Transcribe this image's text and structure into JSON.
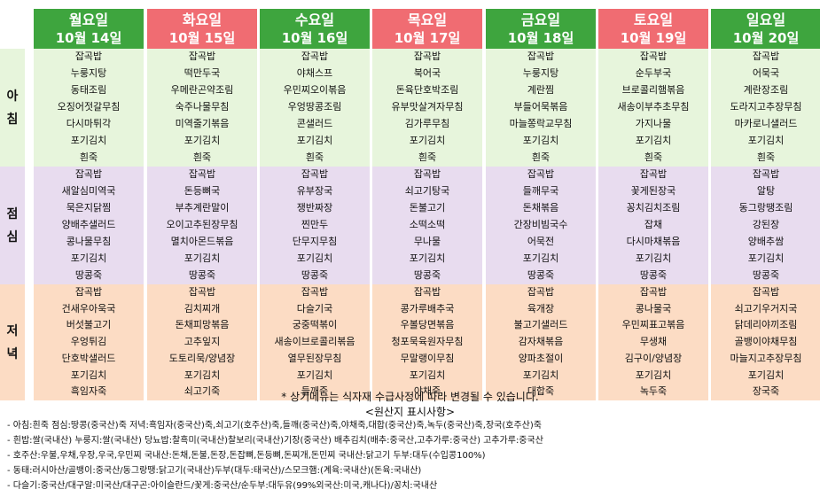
{
  "days": [
    {
      "day": "월요일",
      "date": "10월 14일",
      "header_color": "#3ea53e",
      "breakfast": [
        "잡곡밥",
        "누룽지탕",
        "동태조림",
        "오징어젓갈무침",
        "다시마튀각",
        "포기김치",
        "흰죽"
      ],
      "lunch": [
        "잡곡밥",
        "새알심미역국",
        "묵은지닭찜",
        "양배추샐러드",
        "콩나물무침",
        "포기김치",
        "땅콩죽"
      ],
      "dinner": [
        "잡곡밥",
        "건새우아욱국",
        "버섯불고기",
        "우엉튀김",
        "단호박샐러드",
        "포기김치",
        "흑임자죽"
      ]
    },
    {
      "day": "화요일",
      "date": "10월 15일",
      "header_color": "#f06c72",
      "breakfast": [
        "잡곡밥",
        "떡만두국",
        "우메란곤약조림",
        "숙주나물무침",
        "미역줄기볶음",
        "포기김치",
        "흰죽"
      ],
      "lunch": [
        "잡곡밥",
        "돈등뼈국",
        "부추계란말이",
        "오이고추된장무침",
        "멸치아몬드볶음",
        "포기김치",
        "땅콩죽"
      ],
      "dinner": [
        "잡곡밥",
        "김치찌개",
        "돈채피망볶음",
        "고추잎지",
        "도토리묵/양념장",
        "포기김치",
        "쇠고기죽"
      ]
    },
    {
      "day": "수요일",
      "date": "10월 16일",
      "header_color": "#3ea53e",
      "breakfast": [
        "잡곡밥",
        "야채스프",
        "우민찌오이볶음",
        "우엉땅콩조림",
        "콘샐러드",
        "포기김치",
        "흰죽"
      ],
      "lunch": [
        "잡곡밥",
        "유부장국",
        "쟁반짜장",
        "찐만두",
        "단무지무침",
        "포기김치",
        "땅콩죽"
      ],
      "dinner": [
        "잡곡밥",
        "다슬기국",
        "궁중떡볶이",
        "새송이브로콜리볶음",
        "열무된장무침",
        "포기김치",
        "들깨죽"
      ]
    },
    {
      "day": "목요일",
      "date": "10월 17일",
      "header_color": "#f06c72",
      "breakfast": [
        "잡곡밥",
        "북어국",
        "돈육단호박조림",
        "유부맛살겨자무침",
        "김가루무침",
        "포기김치",
        "흰죽"
      ],
      "lunch": [
        "잡곡밥",
        "쇠고기탕국",
        "돈불고기",
        "소떡소떡",
        "무나물",
        "포기김치",
        "땅콩죽"
      ],
      "dinner": [
        "잡곡밥",
        "콩가루배추국",
        "우볼당면볶음",
        "청포묵육원자무침",
        "무말랭이무침",
        "포기김치",
        "야채죽"
      ]
    },
    {
      "day": "금요일",
      "date": "10월 18일",
      "header_color": "#3ea53e",
      "breakfast": [
        "잡곡밥",
        "누룽지탕",
        "계란찜",
        "부들어묵볶음",
        "마늘쫑락교무침",
        "포기김치",
        "흰죽"
      ],
      "lunch": [
        "잡곡밥",
        "들깨무국",
        "돈채볶음",
        "간장비빔국수",
        "어묵전",
        "포기김치",
        "땅콩죽"
      ],
      "dinner": [
        "잡곡밥",
        "육개장",
        "불고기샐러드",
        "감자채볶음",
        "양파초절이",
        "포기김치",
        "대합죽"
      ]
    },
    {
      "day": "토요일",
      "date": "10월 19일",
      "header_color": "#f06c72",
      "breakfast": [
        "잡곡밥",
        "순두부국",
        "브로콜리햄볶음",
        "새송이부추초무침",
        "가지나물",
        "포기김치",
        "흰죽"
      ],
      "lunch": [
        "잡곡밥",
        "꽃게된장국",
        "꽁치김치조림",
        "잡채",
        "다시마채볶음",
        "포기김치",
        "땅콩죽"
      ],
      "dinner": [
        "잡곡밥",
        "콩나물국",
        "우민찌표고볶음",
        "무생채",
        "김구이/양념장",
        "포기김치",
        "녹두죽"
      ]
    },
    {
      "day": "일요일",
      "date": "10월 20일",
      "header_color": "#3ea53e",
      "breakfast": [
        "잡곡밥",
        "어묵국",
        "계란장조림",
        "도라지고추장무침",
        "마카로니샐러드",
        "포기김치",
        "흰죽"
      ],
      "lunch": [
        "잡곡밥",
        "알탕",
        "동그랑땡조림",
        "강된장",
        "양배추쌈",
        "포기김치",
        "땅콩죽"
      ],
      "dinner": [
        "잡곡밥",
        "쇠고기우거지국",
        "닭데리야끼조림",
        "골뱅이야채무침",
        "마늘지고추장무침",
        "포기김치",
        "장국죽"
      ]
    }
  ],
  "meal_labels": {
    "breakfast": "아침",
    "lunch": "점심",
    "dinner": "저녁"
  },
  "colors": {
    "breakfast_bg": "#e7f5dc",
    "lunch_bg": "#e8dcef",
    "dinner_bg": "#fcdcc4"
  },
  "notice": "* 상기메뉴는 식자재 수급사정에 따라 변경될 수 있습니다.",
  "origin_title": "<원산지 표시사항>",
  "origin_lines": [
    "- 아침:흰죽  점심:땅콩(중국산)죽  저녁:흑임자(중국산)죽,쇠고기(호주산)죽,들깨(중국산)죽,야채죽,대합(중국산)죽,녹두(중국산)죽,장국(호주산)죽",
    "- 흰밥:쌀(국내산)  누룽지:쌀(국내산)  당뇨밥:찰흑미(국내산)찰보리(국내산)기장(중국산)  배추김치(배추:중국산,고추가루:중국산)  고추가루:중국산",
    "- 호주산:우불,우채,우장,우국,우민찌    국내산:돈채,돈불,돈장,돈잡뼈,돈등뼈,돈찌개,돈민찌    국내산:닭고기    두부:대두(수입콩100%)",
    "- 동태:러시아산/골뱅이:중국산/동그랑땡:닭고기(국내산)두부(대두:태국산)/스모크햄:(계육:국내산)(돈육:국내산)",
    "- 다슬기:중국산/대구알:미국산/대구곤:아이슬란드/꽃게:중국산/순두부:대두유(99%외국산:미국,캐나다)/꽁치:국내산"
  ]
}
